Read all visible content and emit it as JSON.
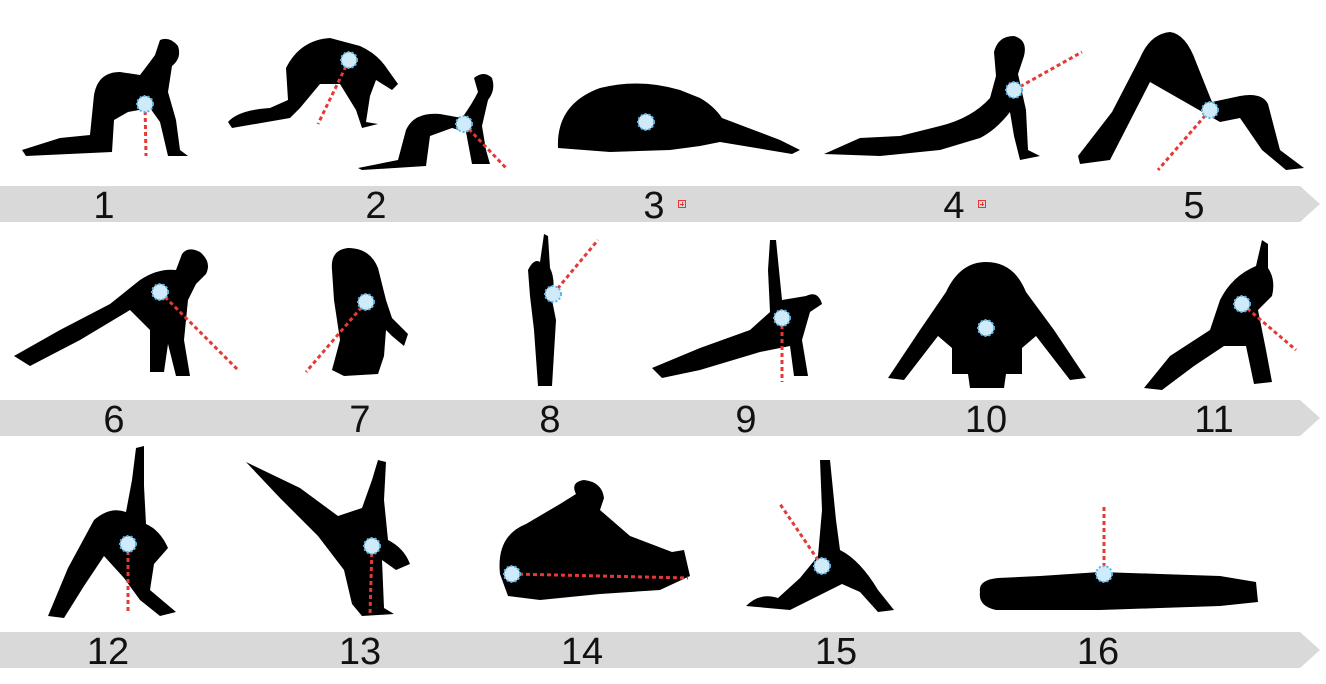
{
  "labels": [
    "1",
    "2",
    "3",
    "4",
    "5",
    "6",
    "7",
    "8",
    "9",
    "10",
    "11",
    "12",
    "13",
    "14",
    "15",
    "16"
  ],
  "colors": {
    "silhouette": "#000000",
    "band": "#d9d9d9",
    "marker_fill": "#cfeaf8",
    "marker_ring": "#5bb6e6",
    "ray": "#e53935",
    "label": "#111111"
  },
  "icons": {
    "pose": "person-silhouette-icon",
    "center": "body-center-marker-icon",
    "ray": "dashed-direction-line",
    "badge": "small-plus-box-icon"
  }
}
